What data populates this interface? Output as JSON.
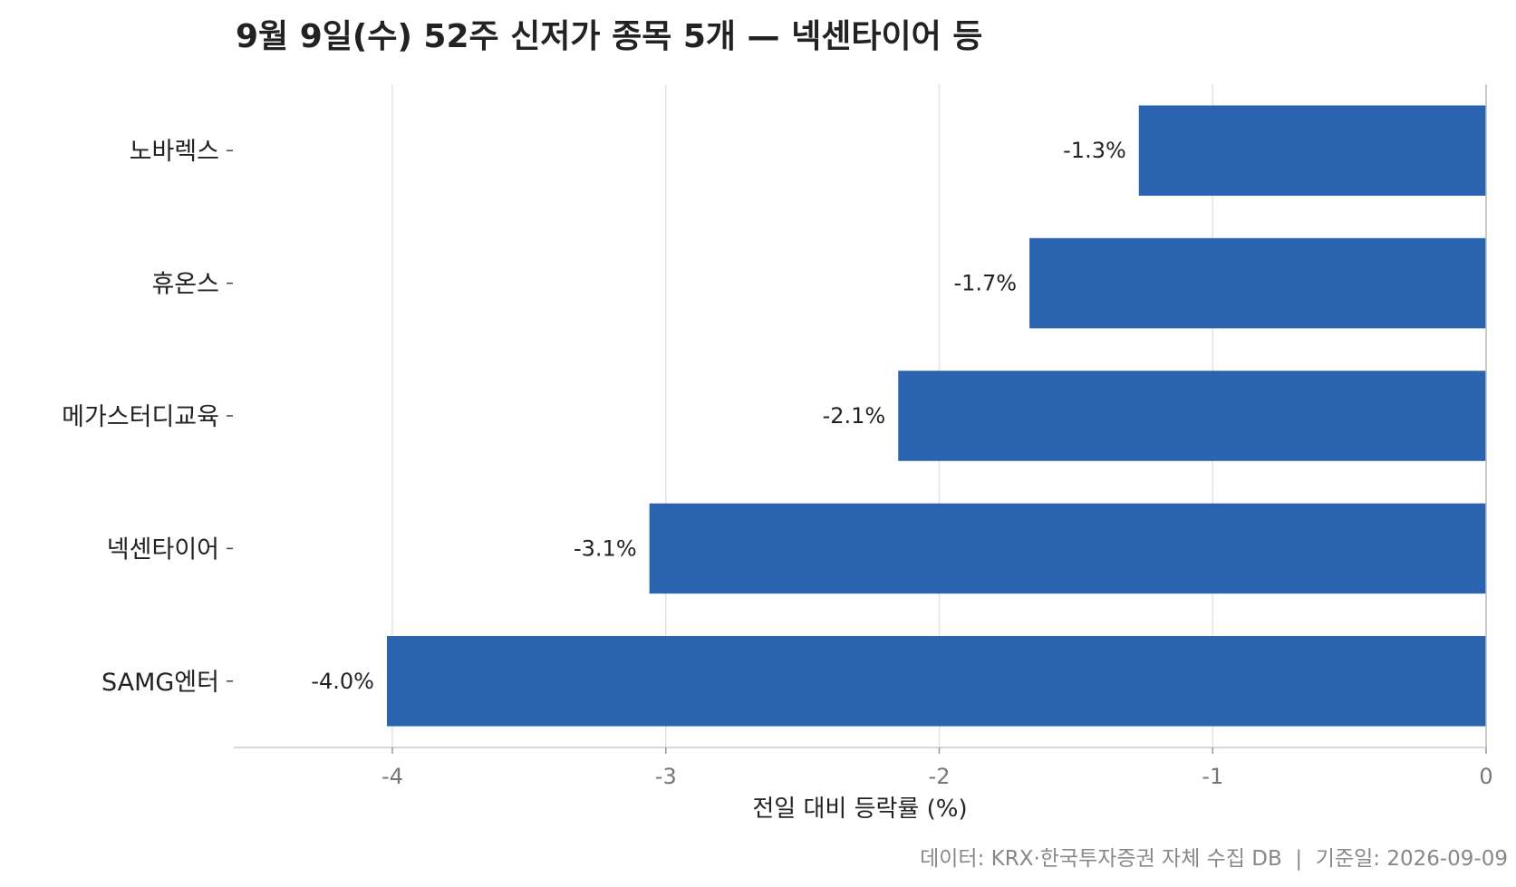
{
  "chart_data": {
    "type": "bar",
    "orientation": "horizontal",
    "title": "9월 9일(수) 52주 신저가 종목 5개 — 넥센타이어 등",
    "xlabel": "전일 대비 등락률 (%)",
    "ylabel": "",
    "categories": [
      "노바렉스",
      "휴온스",
      "메가스터디교육",
      "넥센타이어",
      "SAMG엔터"
    ],
    "values": [
      -1.27,
      -1.67,
      -2.15,
      -3.06,
      -4.02
    ],
    "value_labels": [
      "-1.3%",
      "-1.7%",
      "-2.1%",
      "-3.1%",
      "-4.0%"
    ],
    "xlim": [
      -4.58,
      0
    ],
    "x_ticks": [
      -4,
      -3,
      -2,
      -1,
      0
    ],
    "x_tick_labels": [
      "-4",
      "-3",
      "-2",
      "-1",
      "0"
    ],
    "grid": "vertical",
    "bar_color": "#2a63b0",
    "footnote": "데이터: KRX·한국투자증권 자체 수집 DB  |  기준일: 2026-09-09"
  }
}
